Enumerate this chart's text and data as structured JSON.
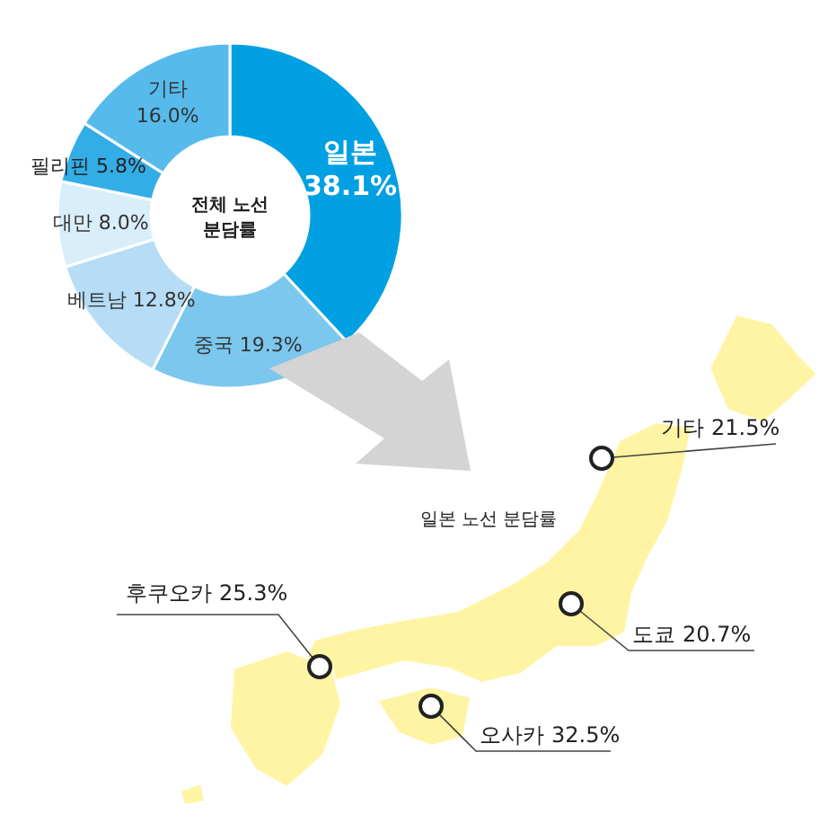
{
  "chart_data": [
    {
      "type": "donut",
      "categories": [
        "일본",
        "중국",
        "베트남",
        "대만",
        "필리핀",
        "기타"
      ],
      "values": [
        38.1,
        19.3,
        12.8,
        8.0,
        5.8,
        16.0
      ],
      "value_labels": [
        "38.1%",
        "19.3%",
        "12.8%",
        "8.0%",
        "5.8%",
        "16.0%"
      ],
      "colors": [
        "#00a0e3",
        "#7cc7ee",
        "#b6ddf5",
        "#d9eefb",
        "#33ade6",
        "#56bbec"
      ],
      "annotations": [
        "전체 노선 분담률"
      ]
    },
    {
      "type": "other",
      "title": "일본 노선 분담률",
      "categories": [
        "기타",
        "도쿄",
        "오사카",
        "후쿠오카"
      ],
      "values": [
        21.5,
        20.7,
        32.5,
        25.3
      ],
      "value_labels": [
        "21.5%",
        "20.7%",
        "32.5%",
        "25.3%"
      ],
      "color": "#fff4a3"
    }
  ]
}
